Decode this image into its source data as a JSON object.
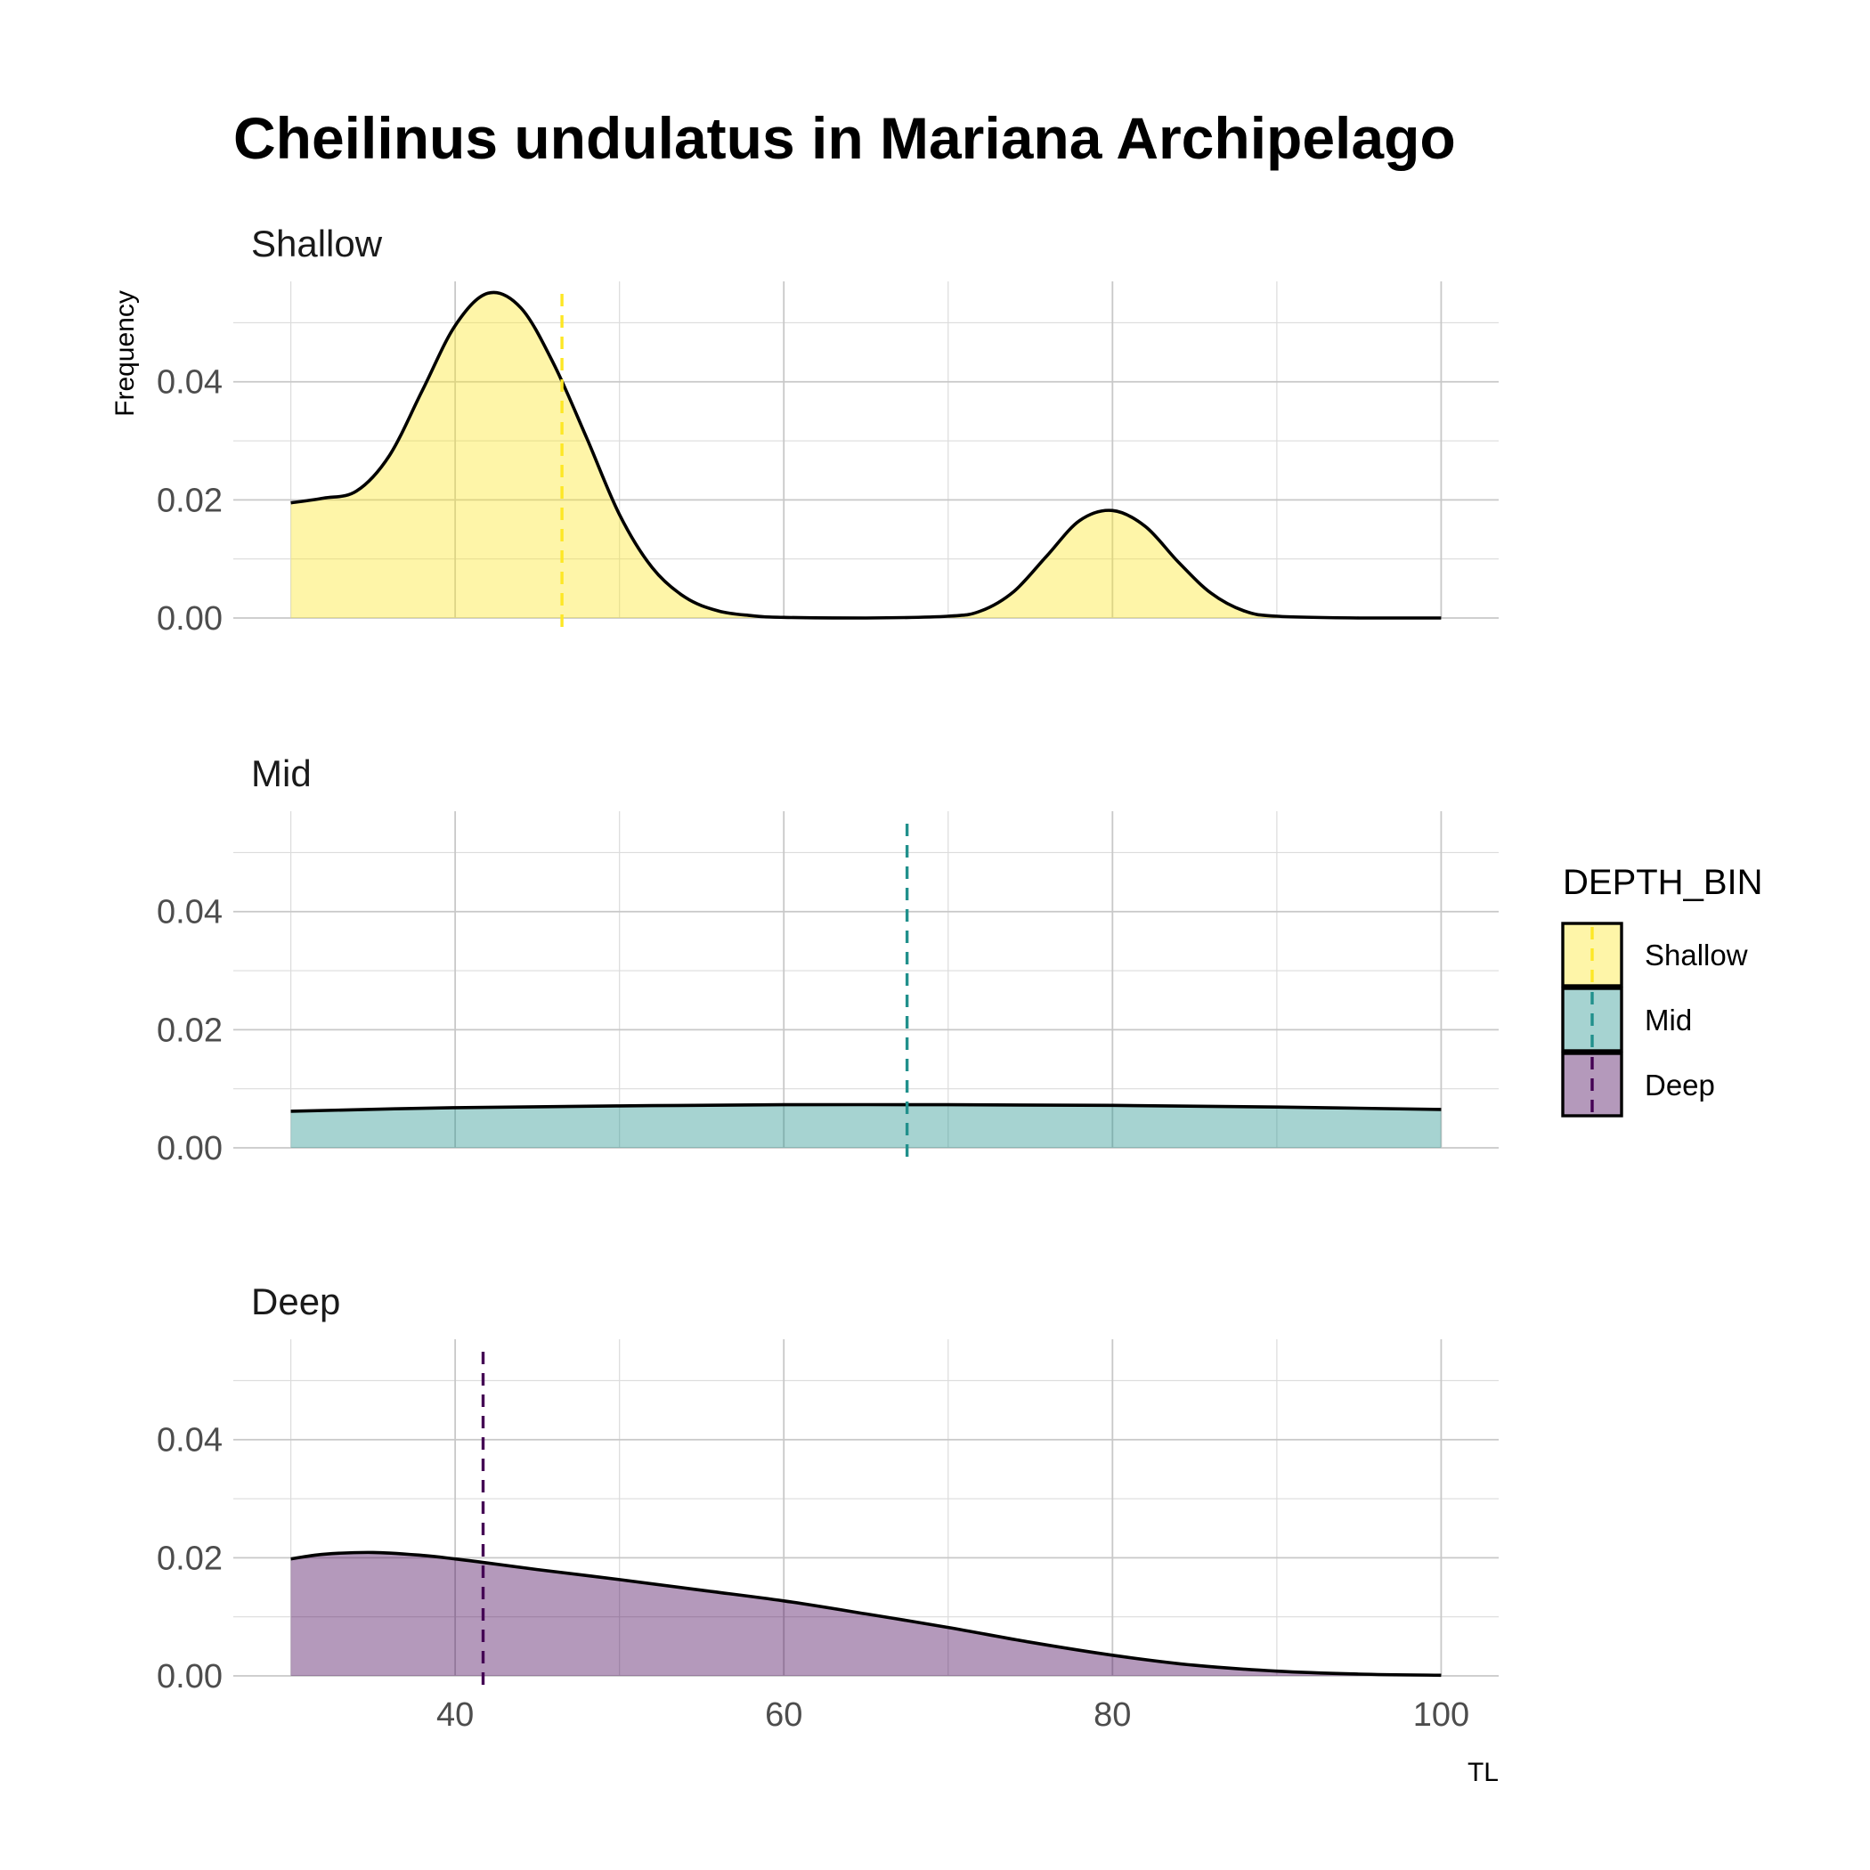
{
  "chart_data": {
    "type": "area",
    "title": "Cheilinus undulatus in Mariana Archipelago",
    "xlabel": "TL",
    "ylabel": "Frequency",
    "xlim": [
      26.5,
      103.5
    ],
    "ylim": [
      0,
      0.057
    ],
    "x_ticks": [
      40,
      60,
      80,
      100
    ],
    "x_tick_labels": [
      "40",
      "60",
      "80",
      "100"
    ],
    "y_ticks": [
      0,
      0.02,
      0.04
    ],
    "y_tick_labels": [
      "0.00",
      "0.02",
      "0.04"
    ],
    "grid": true,
    "legend": {
      "title": "DEPTH_BIN",
      "position": "right",
      "entries": [
        "Shallow",
        "Mid",
        "Deep"
      ]
    },
    "facets": [
      {
        "name": "Shallow",
        "label": "Shallow",
        "fill": "#FDE725",
        "mean_line_color": "#FDE725",
        "mean": 46.5,
        "x": [
          30,
          32,
          34,
          36,
          38,
          40,
          42,
          44,
          46,
          48,
          50,
          52,
          54,
          56,
          58,
          60,
          65,
          70,
          72,
          74,
          76,
          78,
          80,
          82,
          84,
          86,
          88,
          90,
          95,
          100
        ],
        "y": [
          0.0195,
          0.0203,
          0.0215,
          0.0275,
          0.0385,
          0.0495,
          0.055,
          0.0525,
          0.043,
          0.0305,
          0.0175,
          0.0085,
          0.0035,
          0.0012,
          0.0004,
          0.0001,
          0.0,
          0.0003,
          0.0012,
          0.0045,
          0.0105,
          0.0165,
          0.0182,
          0.0155,
          0.0095,
          0.0042,
          0.0012,
          0.0003,
          0.0,
          0.0
        ]
      },
      {
        "name": "Mid",
        "label": "Mid",
        "fill": "#21908C",
        "mean_line_color": "#21908C",
        "mean": 67.5,
        "x": [
          30,
          40,
          50,
          60,
          70,
          80,
          90,
          100
        ],
        "y": [
          0.0062,
          0.0068,
          0.0071,
          0.0073,
          0.0073,
          0.0072,
          0.0069,
          0.0065
        ]
      },
      {
        "name": "Deep",
        "label": "Deep",
        "fill": "#440154",
        "mean_line_color": "#440154",
        "mean": 41.7,
        "x": [
          30,
          32,
          35,
          38,
          40,
          42,
          45,
          50,
          55,
          60,
          65,
          70,
          75,
          80,
          85,
          90,
          95,
          100
        ],
        "y": [
          0.0198,
          0.0206,
          0.0209,
          0.0204,
          0.0198,
          0.0191,
          0.018,
          0.0163,
          0.0145,
          0.0127,
          0.0105,
          0.0082,
          0.0057,
          0.0035,
          0.0018,
          0.0008,
          0.0003,
          0.0001
        ]
      }
    ]
  }
}
